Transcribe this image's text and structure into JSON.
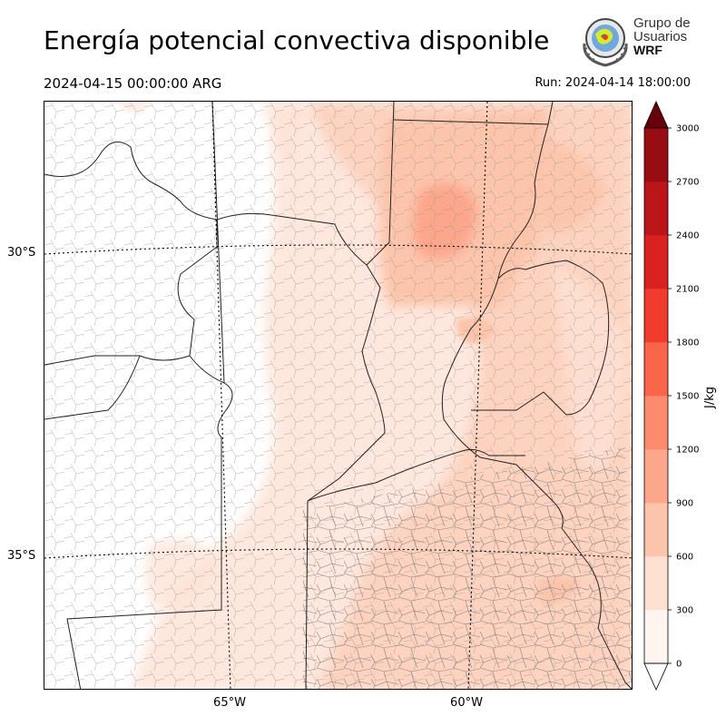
{
  "header": {
    "title": "Energía potencial convectiva disponible",
    "valid_time": "2024-04-15 00:00:00 ARG",
    "run_time": "Run: 2024-04-14 18:00:00"
  },
  "logo": {
    "line1": "Grupo de",
    "line2": "Usuarios",
    "line3": "WRF",
    "icon": "wrf-users-group-globe-emblem"
  },
  "map": {
    "variable": "CAPE",
    "lat_labels": [
      "30°S",
      "35°S"
    ],
    "lon_labels": [
      "65°W",
      "60°W"
    ]
  },
  "colorbar": {
    "unit": "J/kg",
    "ticks": [
      "0",
      "300",
      "600",
      "900",
      "1200",
      "1500",
      "1800",
      "2100",
      "2400",
      "2700",
      "3000"
    ],
    "colors": [
      "#fff5f0",
      "#fee0d2",
      "#fcc5ab",
      "#fca68b",
      "#fc8b6d",
      "#f96548",
      "#ef3c2c",
      "#d9211f",
      "#bb1419",
      "#980c13"
    ],
    "extend_min_color": "#ffffff",
    "extend_max_color": "#67000d"
  }
}
